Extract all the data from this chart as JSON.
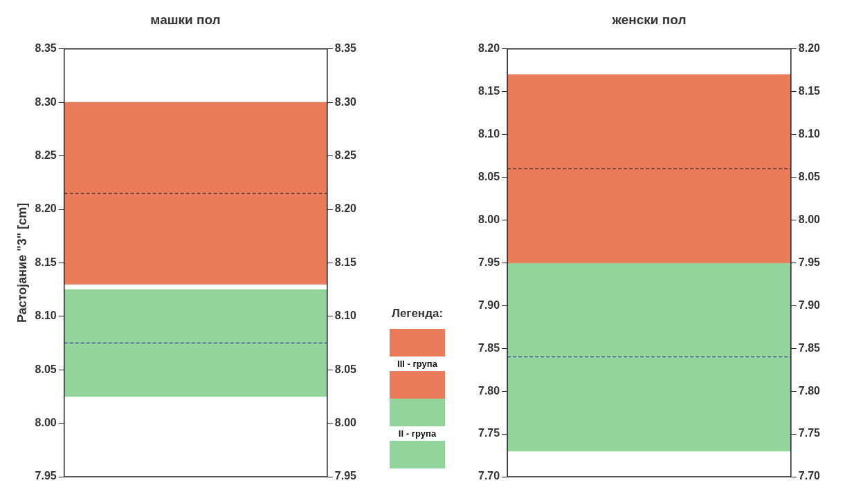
{
  "chart_data": [
    {
      "type": "bar",
      "title": "машки пол",
      "ylabel": "Растојание \"3\" [cm]",
      "categories": [
        null
      ],
      "legend": "right",
      "legend_title": "Легенда:",
      "series": [
        {
          "name": "III - група",
          "color": "#ea7c5c",
          "values": [
            0.17
          ],
          "base": [
            8.13
          ]
        },
        {
          "name": "II - група",
          "color": "#93d49c",
          "values": [
            0.1
          ],
          "base": [
            8.025
          ]
        }
      ],
      "ref_lines": [
        {
          "axis": "y",
          "value": 8.215,
          "color": "#5a3020",
          "line_style": "dashed"
        },
        {
          "axis": "y",
          "value": 8.075,
          "color": "#4050a0",
          "line_style": "dashed"
        }
      ],
      "ylim": [
        7.95,
        8.35
      ],
      "yticks": [
        7.95,
        {
          "value": 8.0,
          "label": "8.00"
        },
        8.05,
        {
          "value": 8.1,
          "label": "8.10"
        },
        8.15,
        {
          "value": 8.2,
          "label": "8.20"
        },
        8.25,
        {
          "value": 8.3,
          "label": "8.30"
        },
        8.35
      ],
      "y2lim": [
        7.95,
        8.35
      ],
      "y2ticks": [
        7.95,
        {
          "value": 8.0,
          "label": "8.00"
        },
        8.05,
        {
          "value": 8.1,
          "label": "8.10"
        },
        8.15,
        {
          "value": 8.2,
          "label": "8.20"
        },
        8.25,
        {
          "value": 8.3,
          "label": "8.30"
        },
        8.35
      ]
    },
    {
      "type": "bar",
      "title": "женски пол",
      "categories": [
        null
      ],
      "series": [
        {
          "color": "#ea7c5c",
          "values": [
            0.22
          ],
          "base": [
            7.95
          ]
        },
        {
          "color": "#93d49c",
          "values": [
            0.22
          ],
          "base": [
            7.73
          ]
        }
      ],
      "ref_lines": [
        {
          "axis": "y",
          "value": 8.06,
          "color": "#5a3020",
          "line_style": "dashed"
        },
        {
          "axis": "y",
          "value": 7.84,
          "color": "#4050a0",
          "line_style": "dashed"
        }
      ],
      "ylim": [
        7.7,
        8.2
      ],
      "yticks": [
        {
          "value": 7.7,
          "label": "7.70"
        },
        7.75,
        {
          "value": 7.8,
          "label": "7.80"
        },
        7.85,
        {
          "value": 7.9,
          "label": "7.90"
        },
        7.95,
        {
          "value": 8.0,
          "label": "8.00"
        },
        8.05,
        {
          "value": 8.1,
          "label": "8.10"
        },
        8.15,
        {
          "value": 8.2,
          "label": "8.20"
        }
      ],
      "y2lim": [
        7.7,
        8.2
      ],
      "y2ticks": [
        {
          "value": 7.7,
          "label": "7.70"
        },
        7.75,
        {
          "value": 7.8,
          "label": "7.80"
        },
        7.85,
        {
          "value": 7.9,
          "label": "7.90"
        },
        7.95,
        {
          "value": 8.0,
          "label": "8.00"
        },
        8.05,
        {
          "value": 8.1,
          "label": "8.10"
        },
        8.15,
        {
          "value": 8.2,
          "label": "8.20"
        }
      ]
    }
  ]
}
